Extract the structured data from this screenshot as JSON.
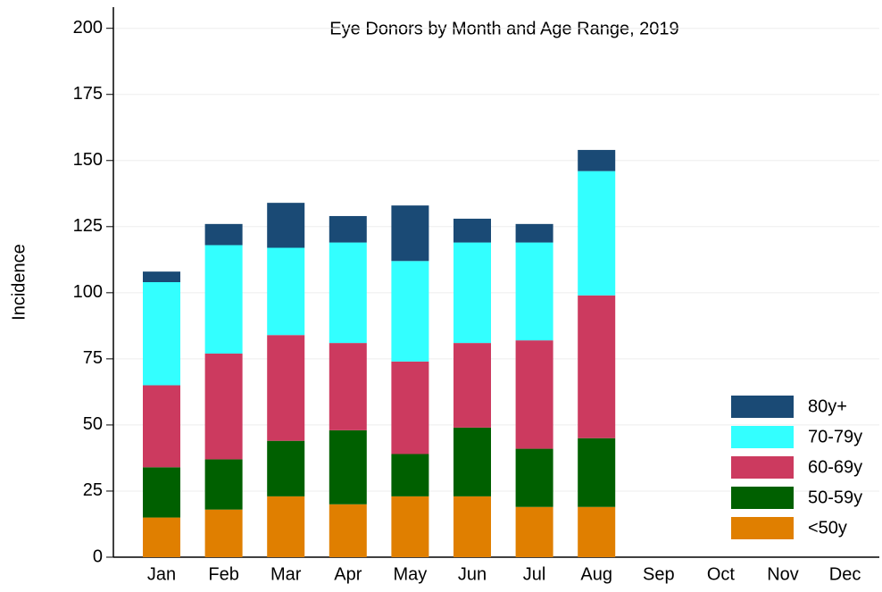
{
  "chart_data": {
    "type": "stacked_bar",
    "title": "Eye Donors by Month and Age Range, 2019",
    "y_label": "Incidence",
    "categories": [
      "Jan",
      "Feb",
      "Mar",
      "Apr",
      "May",
      "Jun",
      "Jul",
      "Aug",
      "Sep",
      "Oct",
      "Nov",
      "Dec"
    ],
    "series": [
      {
        "name": "<50y",
        "color": "#e07f00",
        "values": [
          15,
          18,
          23,
          20,
          23,
          23,
          19,
          19,
          null,
          null,
          null,
          null
        ]
      },
      {
        "name": "50-59y",
        "color": "#006000",
        "values": [
          19,
          19,
          21,
          28,
          16,
          26,
          22,
          26,
          null,
          null,
          null,
          null
        ]
      },
      {
        "name": "60-69y",
        "color": "#cc3a5f",
        "values": [
          31,
          40,
          40,
          33,
          35,
          32,
          41,
          54,
          null,
          null,
          null,
          null
        ]
      },
      {
        "name": "70-79y",
        "color": "#33ffff",
        "values": [
          39,
          41,
          33,
          38,
          38,
          38,
          37,
          47,
          null,
          null,
          null,
          null
        ]
      },
      {
        "name": "80y+",
        "color": "#1a4a75",
        "values": [
          4,
          8,
          17,
          10,
          21,
          9,
          7,
          8,
          null,
          null,
          null,
          null
        ]
      }
    ],
    "ylim": [
      0,
      208
    ],
    "yticks": [
      0,
      25,
      50,
      75,
      100,
      125,
      150,
      175,
      200
    ],
    "grid": true,
    "legend": "bottom-right"
  }
}
